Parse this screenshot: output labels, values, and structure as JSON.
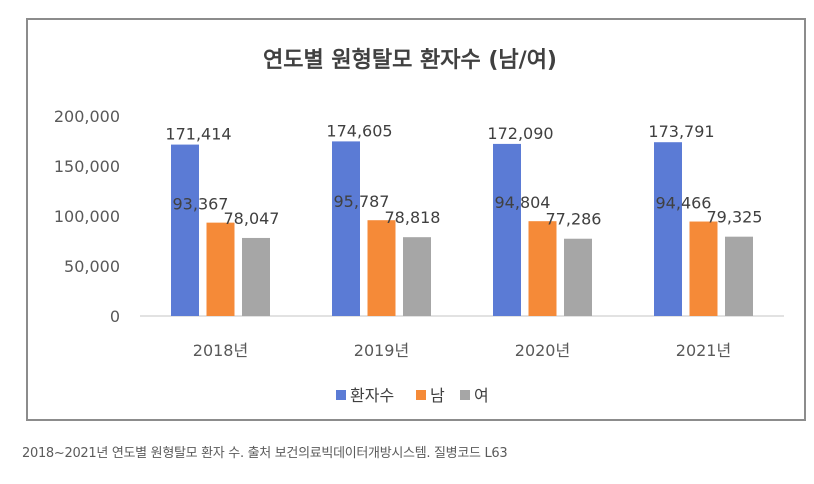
{
  "chart_data": {
    "type": "bar",
    "title": "연도별 원형탈모 환자수 (남/여)",
    "categories": [
      "2018년",
      "2019년",
      "2020년",
      "2021년"
    ],
    "series": [
      {
        "name": "환자수",
        "color": "#5b7bd5",
        "values": [
          171414,
          174605,
          172090,
          173791
        ],
        "labels": [
          "171,414",
          "174,605",
          "172,090",
          "173,791"
        ]
      },
      {
        "name": "남",
        "color": "#f58a38",
        "values": [
          93367,
          95787,
          94804,
          94466
        ],
        "labels": [
          "93,367",
          "95,787",
          "94,804",
          "94,466"
        ]
      },
      {
        "name": "여",
        "color": "#a6a6a6",
        "values": [
          78047,
          78818,
          77286,
          79325
        ],
        "labels": [
          "78,047",
          "78,818",
          "77,286",
          "79,325"
        ]
      }
    ],
    "yticks": [
      0,
      50000,
      100000,
      150000,
      200000
    ],
    "ytick_labels": [
      "0",
      "50,000",
      "100,000",
      "150,000",
      "200,000"
    ],
    "ylim": [
      0,
      200000
    ],
    "xlabel": "",
    "ylabel": "",
    "legend_position": "bottom",
    "grid": false
  },
  "caption": "2018~2021년 연도별 원형탈모 환자 수. 출처 보건의료빅데이터개방시스템. 질병코드 L63"
}
